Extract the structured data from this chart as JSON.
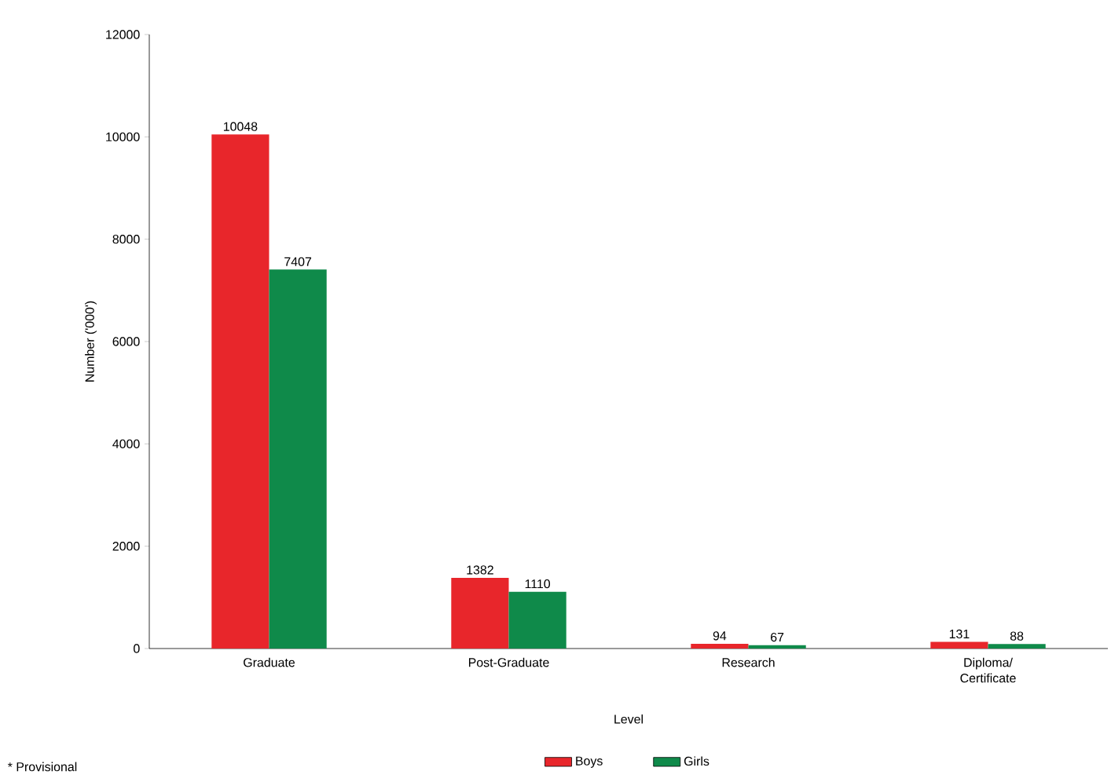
{
  "chart_data": {
    "type": "bar",
    "xlabel": "Level",
    "ylabel": "Number ('000')",
    "categories": [
      "Graduate",
      "Post-Graduate",
      "Research",
      "Diploma/ Certificate"
    ],
    "series": [
      {
        "name": "Boys",
        "color": "#e8262b",
        "values": [
          10048,
          1382,
          94,
          131
        ]
      },
      {
        "name": "Girls",
        "color": "#0f8a4a",
        "values": [
          7407,
          1110,
          67,
          88
        ]
      }
    ],
    "ylim": [
      0,
      12000
    ],
    "yticks": [
      0,
      2000,
      4000,
      6000,
      8000,
      10000,
      12000
    ],
    "data_labels": true,
    "grid": false,
    "legend": "bottom",
    "annotations": [
      "* Provisional"
    ]
  }
}
